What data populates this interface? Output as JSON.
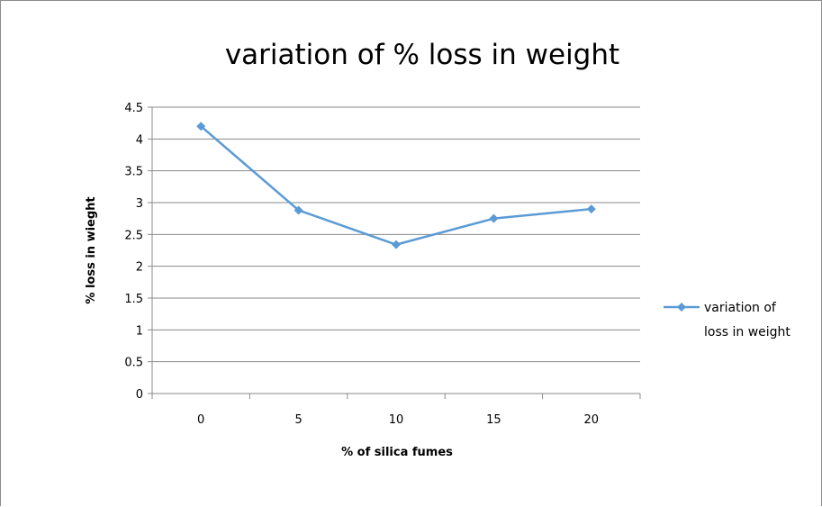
{
  "chart_data": {
    "type": "line",
    "title": "variation of % loss in weight",
    "xlabel": "% of silica fumes",
    "ylabel": "% loss in wieght",
    "categories": [
      "0",
      "5",
      "10",
      "15",
      "20"
    ],
    "series": [
      {
        "name": "variation of loss in weight",
        "values": [
          4.2,
          2.88,
          2.34,
          2.75,
          2.9
        ]
      }
    ],
    "ylim": [
      0,
      4.5
    ],
    "yticks": [
      "0",
      "0.5",
      "1",
      "1.5",
      "2",
      "2.5",
      "3",
      "3.5",
      "4",
      "4.5"
    ],
    "grid": "horizontal",
    "legend": "right",
    "colors": {
      "series": "#5b9bd5",
      "grid": "#8a8a8a",
      "axis": "#8a8a8a"
    }
  }
}
